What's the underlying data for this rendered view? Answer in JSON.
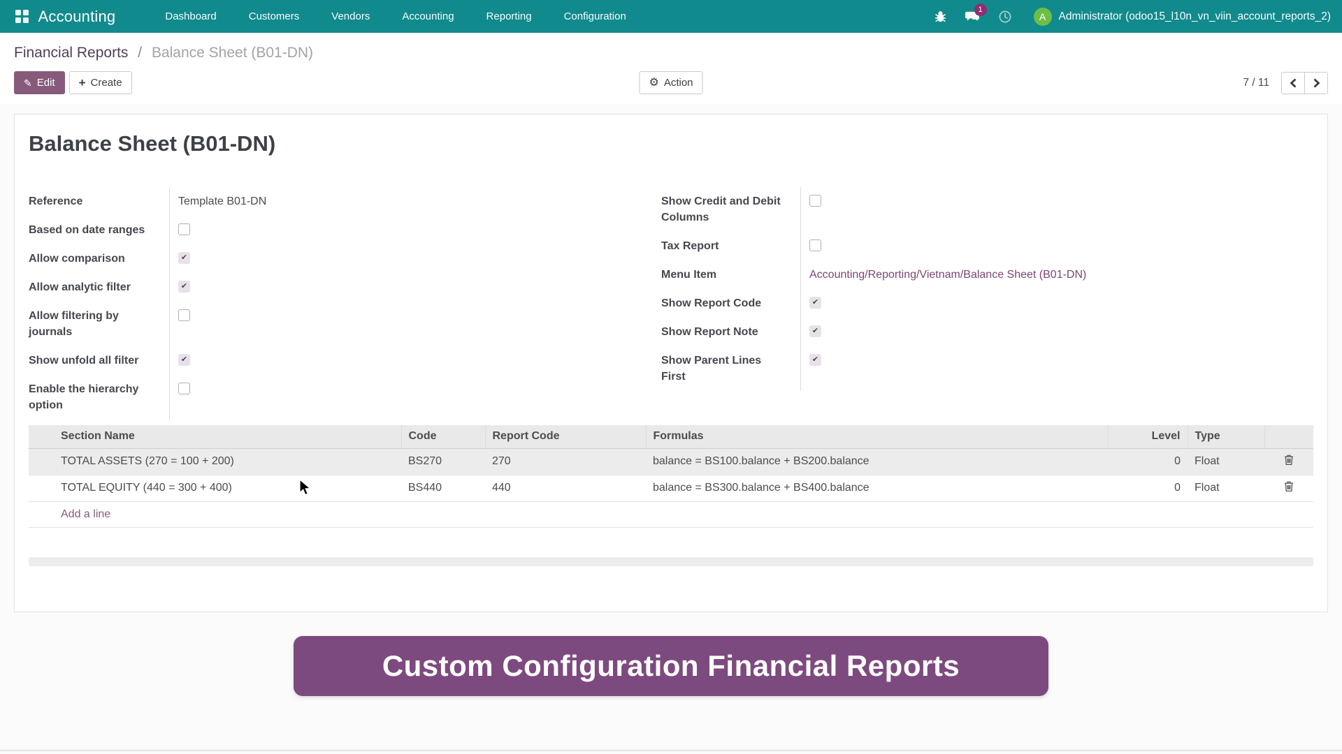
{
  "colors": {
    "navbar_bg": "#118a8d",
    "primary_purple": "#875A7B",
    "banner_purple": "#7d4a7f",
    "avatar_green": "#6dbe45",
    "badge_magenta": "#8f2e70",
    "link_purple": "#7c4576"
  },
  "navbar": {
    "app_name": "Accounting",
    "menu_items": [
      "Dashboard",
      "Customers",
      "Vendors",
      "Accounting",
      "Reporting",
      "Configuration"
    ],
    "message_badge": "1",
    "avatar_initial": "A",
    "user_label": "Administrator (odoo15_l10n_vn_viin_account_reports_2)"
  },
  "control_panel": {
    "breadcrumb": {
      "parent": "Financial Reports",
      "separator": "/",
      "current": "Balance Sheet (B01-DN)"
    },
    "buttons": {
      "edit": "Edit",
      "create": "Create",
      "action": "Action"
    },
    "pager": {
      "value": "7 / 11"
    }
  },
  "form": {
    "title": "Balance Sheet (B01-DN)",
    "left_fields": [
      {
        "label": "Reference",
        "type": "text",
        "value": "Template B01-DN"
      },
      {
        "label": "Based on date ranges",
        "type": "checkbox",
        "checked": false
      },
      {
        "label": "Allow comparison",
        "type": "checkbox",
        "checked": true
      },
      {
        "label": "Allow analytic filter",
        "type": "checkbox",
        "checked": true
      },
      {
        "label": "Allow filtering by journals",
        "type": "checkbox",
        "checked": false
      },
      {
        "label": "Show unfold all filter",
        "type": "checkbox",
        "checked": true
      },
      {
        "label": "Enable the hierarchy option",
        "type": "checkbox",
        "checked": false
      }
    ],
    "right_fields": [
      {
        "label": "Show Credit and Debit Columns",
        "type": "checkbox",
        "checked": false
      },
      {
        "label": "Tax Report",
        "type": "checkbox",
        "checked": false
      },
      {
        "label": "Menu Item",
        "type": "link",
        "value": "Accounting/Reporting/Vietnam/Balance Sheet (B01-DN)"
      },
      {
        "label": "Show Report Code",
        "type": "checkbox",
        "checked": true
      },
      {
        "label": "Show Report Note",
        "type": "checkbox",
        "checked": true
      },
      {
        "label": "Show Parent Lines First",
        "type": "checkbox",
        "checked": true
      }
    ],
    "table": {
      "columns": [
        "Section Name",
        "Code",
        "Report Code",
        "Formulas",
        "Level",
        "Type"
      ],
      "rows": [
        {
          "section_name": "TOTAL ASSETS (270 = 100 + 200)",
          "code": "BS270",
          "report_code": "270",
          "formulas": "balance = BS100.balance + BS200.balance",
          "level": "0",
          "type": "Float"
        },
        {
          "section_name": "TOTAL EQUITY (440 = 300 + 400)",
          "code": "BS440",
          "report_code": "440",
          "formulas": "balance = BS300.balance + BS400.balance",
          "level": "0",
          "type": "Float"
        }
      ],
      "add_line_label": "Add a line"
    }
  },
  "banner": {
    "text": "Custom Configuration Financial Reports"
  }
}
